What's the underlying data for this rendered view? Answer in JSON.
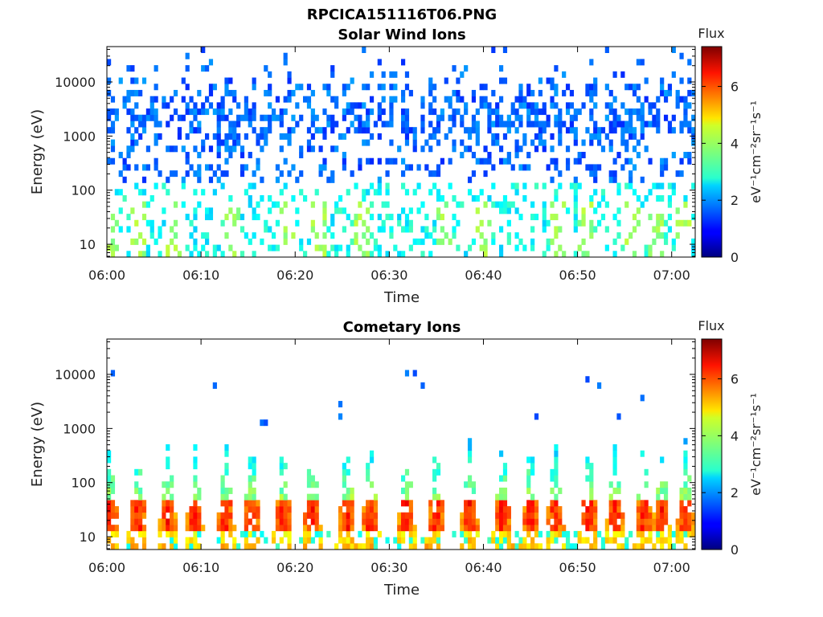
{
  "figure_title": "RPCICA151116T06.PNG",
  "chart_data": [
    {
      "type": "heatmap",
      "title": "Solar Wind Ions",
      "xlabel": "Time",
      "ylabel": "Energy (eV)",
      "x_tick_labels": [
        "06:00",
        "06:10",
        "06:20",
        "06:30",
        "06:40",
        "06:50",
        "07:00"
      ],
      "x_ticks_minutes": [
        0,
        10,
        20,
        30,
        40,
        50,
        60
      ],
      "xlim_minutes": [
        0,
        62.5
      ],
      "y_scale": "log",
      "y_tick_labels": [
        "10",
        "100",
        "1000",
        "10000"
      ],
      "y_ticks": [
        10,
        100,
        1000,
        10000
      ],
      "ylim": [
        5.8,
        45000
      ],
      "colorbar": {
        "title": "Flux",
        "label": "eV⁻¹cm⁻²sr⁻¹s⁻¹",
        "tick_labels": [
          "0",
          "2",
          "4",
          "6"
        ],
        "ticks": [
          0,
          2,
          4,
          6
        ],
        "range": [
          0,
          7.4
        ],
        "colormap": "jet"
      },
      "pattern": "scattered",
      "energy_mode_eV": [
        2000,
        40
      ],
      "band_energy_range_eV": [
        30,
        250
      ],
      "flux_range": [
        1.5,
        3.9
      ],
      "burst_times_minutes": [
        0.3,
        3.5,
        7,
        13.3,
        19.3,
        22.5,
        27,
        36,
        40,
        47.8,
        51,
        56,
        58.3,
        61.2
      ]
    },
    {
      "type": "heatmap",
      "title": "Cometary Ions",
      "xlabel": "Time",
      "ylabel": "Energy (eV)",
      "x_tick_labels": [
        "06:00",
        "06:10",
        "06:20",
        "06:30",
        "06:40",
        "06:50",
        "07:00"
      ],
      "x_ticks_minutes": [
        0,
        10,
        20,
        30,
        40,
        50,
        60
      ],
      "xlim_minutes": [
        0,
        62.5
      ],
      "y_scale": "log",
      "y_tick_labels": [
        "10",
        "100",
        "1000",
        "10000"
      ],
      "y_ticks": [
        10,
        100,
        1000,
        10000
      ],
      "ylim": [
        5.8,
        45000
      ],
      "colorbar": {
        "title": "Flux",
        "label": "eV⁻¹cm⁻²sr⁻¹s⁻¹",
        "tick_labels": [
          "0",
          "2",
          "4",
          "6"
        ],
        "ticks": [
          0,
          2,
          4,
          6
        ],
        "range": [
          0,
          7.4
        ],
        "colormap": "jet"
      },
      "pattern": "periodic_bursts",
      "burst_times_minutes": [
        0.3,
        3.3,
        6.5,
        9.3,
        12.6,
        15.4,
        18.7,
        21.8,
        25.5,
        28,
        31.8,
        35,
        38.5,
        42,
        45,
        47.6,
        51.2,
        54,
        57,
        58.9,
        61.5
      ],
      "core_energy_range_eV": [
        12,
        45
      ],
      "max_energy_eV": 700,
      "flux_range": [
        2.2,
        6.6
      ],
      "sparse_high_energy_eV": [
        1200,
        11000
      ]
    }
  ]
}
